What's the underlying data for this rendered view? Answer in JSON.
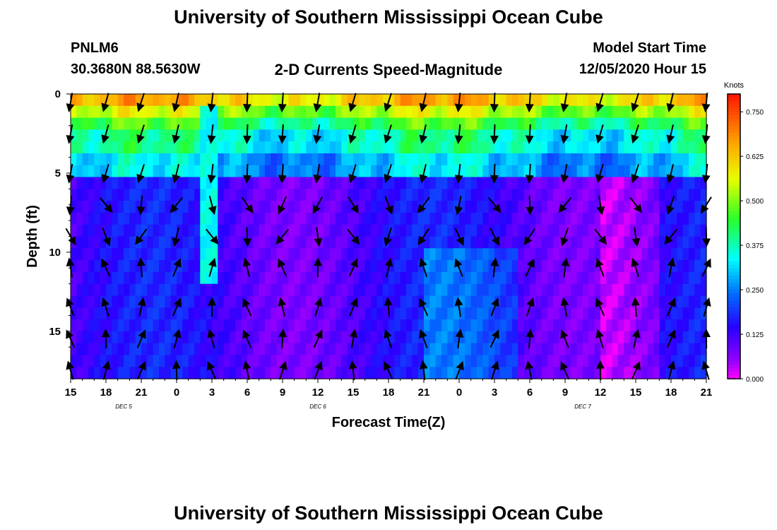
{
  "header": {
    "title": "University of Southern Mississippi Ocean Cube",
    "station": "PNLM6",
    "coords": "30.3680N 88.5630W",
    "subtitle": "2-D Currents Speed-Magnitude",
    "model_label": "Model Start Time",
    "model_time": "12/05/2020 Hour 15",
    "footer_title": "University of Southern Mississippi Ocean Cube"
  },
  "chart_data": {
    "type": "heatmap",
    "title": "2-D Currents Speed-Magnitude",
    "xlabel": "Forecast Time(Z)",
    "ylabel": "Depth (ft)",
    "xlim": [
      0,
      54
    ],
    "ylim": [
      0,
      18
    ],
    "x_tick_labels": [
      "15",
      "18",
      "21",
      "0",
      "3",
      "6",
      "9",
      "12",
      "15",
      "18",
      "21",
      "0",
      "3",
      "6",
      "9",
      "12",
      "15",
      "18",
      "21"
    ],
    "y_ticks": [
      0,
      5,
      10,
      15
    ],
    "y_tick_labels": [
      "0",
      "5",
      "10",
      "15"
    ],
    "date_labels": [
      {
        "text": "DEC 5",
        "hour_index": 4.5
      },
      {
        "text": "DEC 6",
        "hour_index": 21
      },
      {
        "text": "DEC 7",
        "hour_index": 43.5
      }
    ],
    "colorbar": {
      "units": "Knots",
      "range": [
        0,
        0.8
      ],
      "tick_values": [
        0,
        0.125,
        0.25,
        0.375,
        0.5,
        0.625,
        0.75
      ],
      "tick_labels": [
        "0.000",
        "0.125",
        "0.250",
        "0.375",
        "0.500",
        "0.625",
        "0.750"
      ]
    },
    "arrow_depths_ft": [
      0.5,
      2.5,
      5,
      7,
      9,
      11,
      13.5,
      15.5,
      17.5
    ],
    "arrow_hours_from_start": [
      0,
      3,
      6,
      9,
      12,
      15,
      18,
      21,
      24,
      27,
      30,
      33,
      36,
      39,
      42,
      45,
      48,
      51,
      54
    ]
  }
}
